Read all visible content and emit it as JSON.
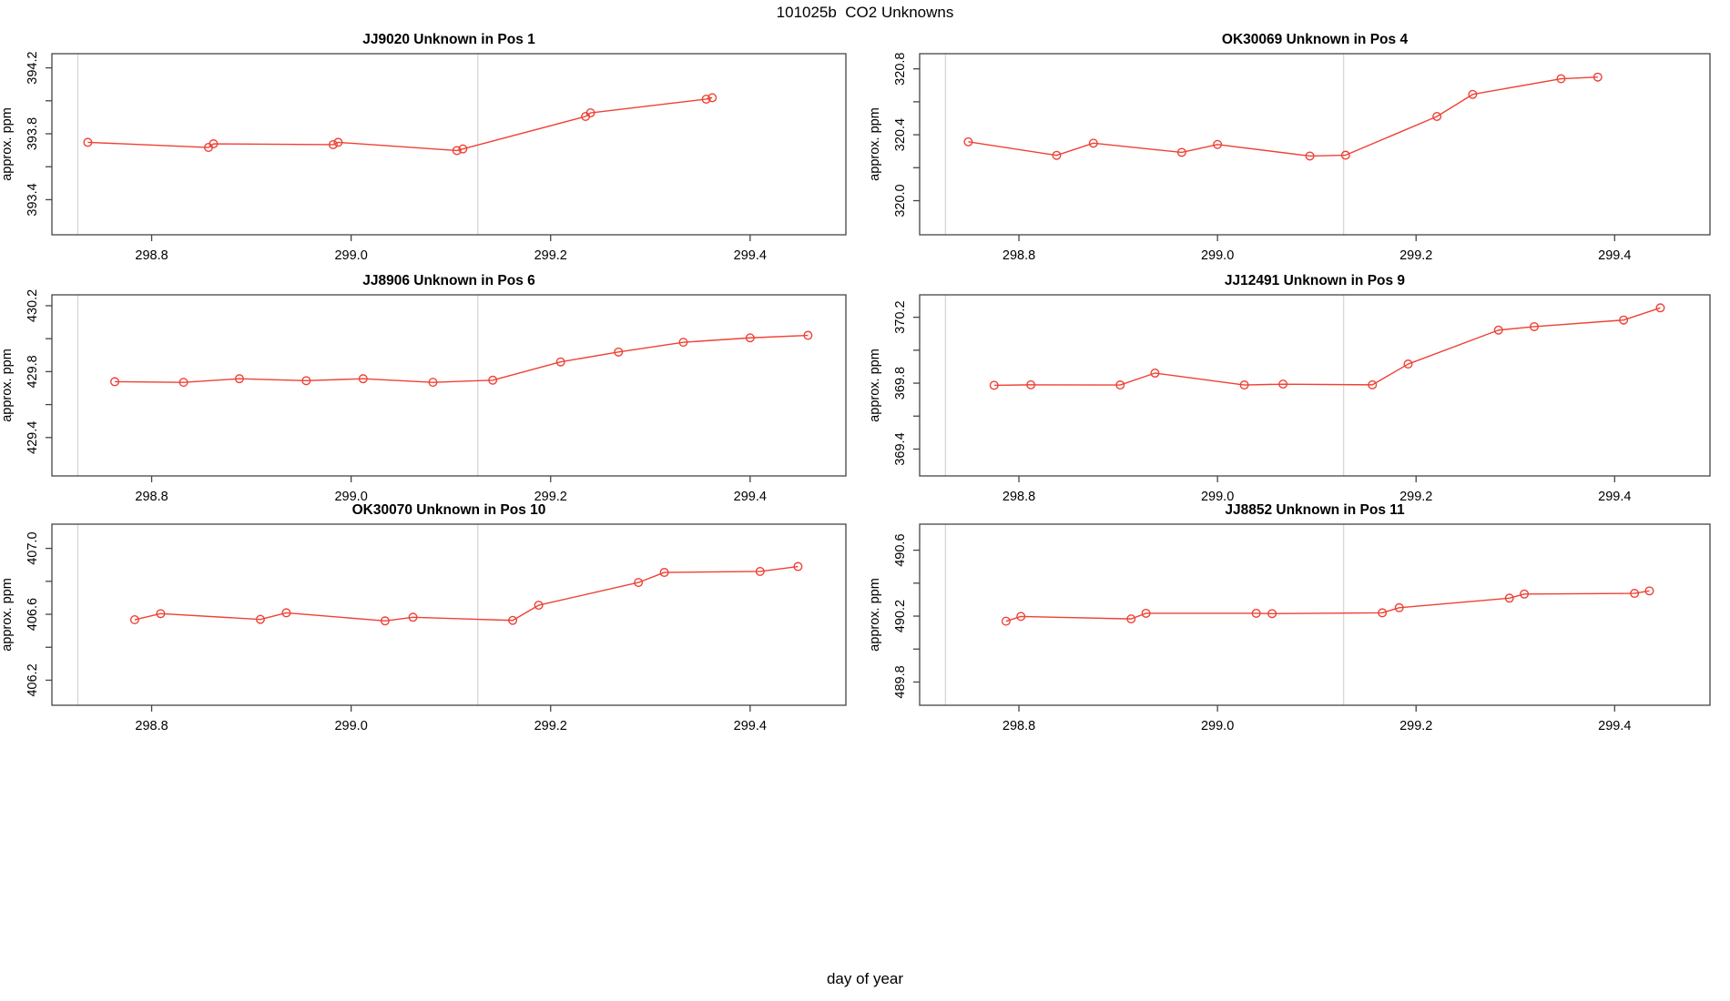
{
  "figure": {
    "title": "101025b  CO2 Unknowns",
    "xlabel": "day of year",
    "line_color": "#ef4135",
    "frame_color": "#454545",
    "grid_color": "#d9d9d9",
    "text_color": "#000000"
  },
  "chart_data": {
    "type": "line",
    "xlabel": "day of year",
    "ylabel": "approx. ppm",
    "xlim": [
      298.7,
      299.496
    ],
    "xticks": [
      298.8,
      299.0,
      299.2,
      299.4
    ],
    "xtick_labels": [
      "298.8",
      "299.0",
      "299.2",
      "299.4"
    ],
    "vlines": [
      298.726,
      299.127
    ],
    "legend": "none",
    "grid": "vertical-reference-lines-only",
    "panels": [
      {
        "id": "JJ9020",
        "title": "JJ9020   Unknown in Pos 1",
        "row": 0,
        "col": 0,
        "ylabel": "approx. ppm",
        "ylim": [
          393.187,
          394.286
        ],
        "yticks": [
          393.4,
          393.6,
          393.8,
          394.0,
          394.2
        ],
        "ytick_labels": [
          "393.4",
          "",
          "393.8",
          "",
          "394.2"
        ],
        "x": [
          298.736,
          298.857,
          298.862,
          298.982,
          298.987,
          299.106,
          299.112,
          299.235,
          299.24,
          299.356,
          299.362
        ],
        "y": [
          393.748,
          393.717,
          393.739,
          393.734,
          393.748,
          393.698,
          393.708,
          393.905,
          393.927,
          394.01,
          394.019
        ]
      },
      {
        "id": "OK30069",
        "title": "OK30069   Unknown in Pos 4",
        "row": 0,
        "col": 1,
        "ylabel": "approx. ppm",
        "ylim": [
          319.793,
          320.892
        ],
        "yticks": [
          320.0,
          320.2,
          320.4,
          320.6,
          320.8
        ],
        "ytick_labels": [
          "320.0",
          "",
          "320.4",
          "",
          "320.8"
        ],
        "x": [
          298.749,
          298.838,
          298.875,
          298.964,
          299.0,
          299.093,
          299.129,
          299.221,
          299.257,
          299.346,
          299.383
        ],
        "y": [
          320.357,
          320.275,
          320.349,
          320.293,
          320.341,
          320.271,
          320.276,
          320.511,
          320.645,
          320.74,
          320.75
        ]
      },
      {
        "id": "JJ8906",
        "title": "JJ8906   Unknown in Pos 6",
        "row": 1,
        "col": 0,
        "ylabel": "approx. ppm",
        "ylim": [
          429.167,
          430.266
        ],
        "yticks": [
          429.4,
          429.6,
          429.8,
          430.0,
          430.2
        ],
        "ytick_labels": [
          "429.4",
          "",
          "429.8",
          "",
          "430.2"
        ],
        "x": [
          298.763,
          298.832,
          298.888,
          298.955,
          299.012,
          299.082,
          299.142,
          299.21,
          299.268,
          299.333,
          299.4,
          299.458
        ],
        "y": [
          429.739,
          429.735,
          429.757,
          429.745,
          429.757,
          429.735,
          429.748,
          429.859,
          429.919,
          429.978,
          430.005,
          430.02
        ]
      },
      {
        "id": "JJ12491",
        "title": "JJ12491   Unknown in Pos 9",
        "row": 1,
        "col": 1,
        "ylabel": "approx. ppm",
        "ylim": [
          369.237,
          370.336
        ],
        "yticks": [
          369.4,
          369.6,
          369.8,
          370.0,
          370.2
        ],
        "ytick_labels": [
          "369.4",
          "",
          "369.8",
          "",
          "370.2"
        ],
        "x": [
          298.775,
          298.812,
          298.902,
          298.937,
          299.027,
          299.066,
          299.156,
          299.192,
          299.283,
          299.319,
          299.409,
          299.446
        ],
        "y": [
          369.787,
          369.79,
          369.789,
          369.861,
          369.789,
          369.794,
          369.79,
          369.916,
          370.122,
          370.143,
          370.183,
          370.257
        ]
      },
      {
        "id": "OK30070",
        "title": "OK30070   Unknown in Pos 10",
        "row": 2,
        "col": 0,
        "ylabel": "approx. ppm",
        "ylim": [
          406.048,
          407.147
        ],
        "yticks": [
          406.2,
          406.4,
          406.6,
          406.8,
          407.0
        ],
        "ytick_labels": [
          "406.2",
          "",
          "406.6",
          "",
          "407.0"
        ],
        "x": [
          298.783,
          298.809,
          298.909,
          298.935,
          299.034,
          299.062,
          299.162,
          299.188,
          299.288,
          299.314,
          299.41,
          299.448
        ],
        "y": [
          406.567,
          406.604,
          406.569,
          406.609,
          406.56,
          406.582,
          406.563,
          406.655,
          406.793,
          406.854,
          406.86,
          406.89
        ]
      },
      {
        "id": "JJ8852",
        "title": "JJ8852   Unknown in Pos 11",
        "row": 2,
        "col": 1,
        "ylabel": "approx. ppm",
        "ylim": [
          489.659,
          490.758
        ],
        "yticks": [
          489.8,
          490.0,
          490.2,
          490.4,
          490.6
        ],
        "ytick_labels": [
          "489.8",
          "",
          "490.2",
          "",
          "490.6"
        ],
        "x": [
          298.787,
          298.802,
          298.913,
          298.928,
          299.039,
          299.055,
          299.166,
          299.183,
          299.294,
          299.309,
          299.42,
          299.435
        ],
        "y": [
          490.169,
          490.198,
          490.183,
          490.217,
          490.217,
          490.215,
          490.22,
          490.251,
          490.309,
          490.334,
          490.338,
          490.353
        ]
      }
    ]
  }
}
